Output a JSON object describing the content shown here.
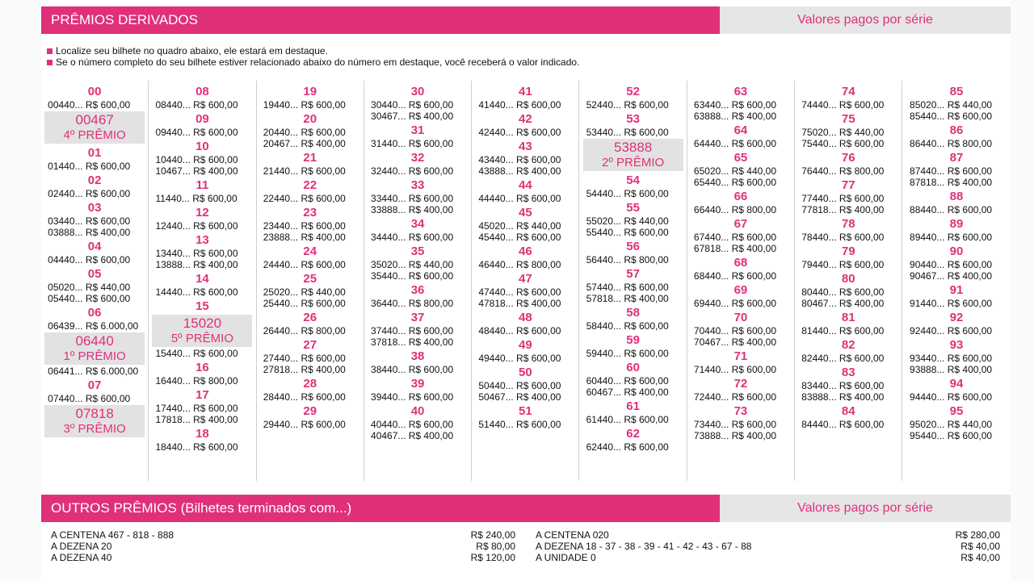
{
  "colors": {
    "accent": "#e0307a",
    "header_gray": "#e6e6e6",
    "highlight": "#e2e2e2"
  },
  "derivados": {
    "title": "PRÊMIOS DERIVADOS",
    "right_label": "Valores pagos por série",
    "notes": [
      "Localize seu bilhete no quadro abaixo, ele estará em destaque.",
      "Se o número completo do seu bilhete estiver relacionado abaixo do número em destaque, você receberá o valor indicado."
    ]
  },
  "columns": [
    [
      {
        "t": "d",
        "v": "00"
      },
      {
        "t": "l",
        "v": "00440... R$ 600,00"
      },
      {
        "t": "h",
        "num": "00467",
        "label": "4º PRÊMIO"
      },
      {
        "t": "d",
        "v": "01"
      },
      {
        "t": "l",
        "v": "01440... R$ 600,00"
      },
      {
        "t": "d",
        "v": "02"
      },
      {
        "t": "l",
        "v": "02440... R$ 600,00"
      },
      {
        "t": "d",
        "v": "03"
      },
      {
        "t": "l",
        "v": "03440... R$ 600,00"
      },
      {
        "t": "l",
        "v": "03888... R$ 400,00"
      },
      {
        "t": "d",
        "v": "04"
      },
      {
        "t": "l",
        "v": "04440... R$ 600,00"
      },
      {
        "t": "d",
        "v": "05"
      },
      {
        "t": "l",
        "v": "05020... R$ 440,00"
      },
      {
        "t": "l",
        "v": "05440... R$ 600,00"
      },
      {
        "t": "d",
        "v": "06"
      },
      {
        "t": "l",
        "v": "06439... R$ 6.000,00"
      },
      {
        "t": "h",
        "num": "06440",
        "label": "1º PRÊMIO"
      },
      {
        "t": "l",
        "v": "06441... R$ 6.000,00"
      },
      {
        "t": "d",
        "v": "07"
      },
      {
        "t": "l",
        "v": "07440... R$ 600,00"
      },
      {
        "t": "h",
        "num": "07818",
        "label": "3º PRÊMIO"
      }
    ],
    [
      {
        "t": "d",
        "v": "08"
      },
      {
        "t": "l",
        "v": "08440... R$ 600,00"
      },
      {
        "t": "d",
        "v": "09"
      },
      {
        "t": "l",
        "v": "09440... R$ 600,00"
      },
      {
        "t": "d",
        "v": "10"
      },
      {
        "t": "l",
        "v": "10440... R$ 600,00"
      },
      {
        "t": "l",
        "v": "10467... R$ 400,00"
      },
      {
        "t": "d",
        "v": "11"
      },
      {
        "t": "l",
        "v": "11440... R$ 600,00"
      },
      {
        "t": "d",
        "v": "12"
      },
      {
        "t": "l",
        "v": "12440... R$ 600,00"
      },
      {
        "t": "d",
        "v": "13"
      },
      {
        "t": "l",
        "v": "13440... R$ 600,00"
      },
      {
        "t": "l",
        "v": "13888... R$ 400,00"
      },
      {
        "t": "d",
        "v": "14"
      },
      {
        "t": "l",
        "v": "14440... R$ 600,00"
      },
      {
        "t": "d",
        "v": "15"
      },
      {
        "t": "h",
        "num": "15020",
        "label": "5º PRÊMIO"
      },
      {
        "t": "l",
        "v": "15440... R$ 600,00"
      },
      {
        "t": "d",
        "v": "16"
      },
      {
        "t": "l",
        "v": "16440... R$ 800,00"
      },
      {
        "t": "d",
        "v": "17"
      },
      {
        "t": "l",
        "v": "17440... R$ 600,00"
      },
      {
        "t": "l",
        "v": "17818... R$ 400,00"
      },
      {
        "t": "d",
        "v": "18"
      },
      {
        "t": "l",
        "v": "18440... R$ 600,00"
      }
    ],
    [
      {
        "t": "d",
        "v": "19"
      },
      {
        "t": "l",
        "v": "19440... R$ 600,00"
      },
      {
        "t": "d",
        "v": "20"
      },
      {
        "t": "l",
        "v": "20440... R$ 600,00"
      },
      {
        "t": "l",
        "v": "20467... R$ 400,00"
      },
      {
        "t": "d",
        "v": "21"
      },
      {
        "t": "l",
        "v": "21440... R$ 600,00"
      },
      {
        "t": "d",
        "v": "22"
      },
      {
        "t": "l",
        "v": "22440... R$ 600,00"
      },
      {
        "t": "d",
        "v": "23"
      },
      {
        "t": "l",
        "v": "23440... R$ 600,00"
      },
      {
        "t": "l",
        "v": "23888... R$ 400,00"
      },
      {
        "t": "d",
        "v": "24"
      },
      {
        "t": "l",
        "v": "24440... R$ 600,00"
      },
      {
        "t": "d",
        "v": "25"
      },
      {
        "t": "l",
        "v": "25020... R$ 440,00"
      },
      {
        "t": "l",
        "v": "25440... R$ 600,00"
      },
      {
        "t": "d",
        "v": "26"
      },
      {
        "t": "l",
        "v": "26440... R$ 800,00"
      },
      {
        "t": "d",
        "v": "27"
      },
      {
        "t": "l",
        "v": "27440... R$ 600,00"
      },
      {
        "t": "l",
        "v": "27818... R$ 400,00"
      },
      {
        "t": "d",
        "v": "28"
      },
      {
        "t": "l",
        "v": "28440... R$ 600,00"
      },
      {
        "t": "d",
        "v": "29"
      },
      {
        "t": "l",
        "v": "29440... R$ 600,00"
      }
    ],
    [
      {
        "t": "d",
        "v": "30"
      },
      {
        "t": "l",
        "v": "30440... R$ 600,00"
      },
      {
        "t": "l",
        "v": "30467... R$ 400,00"
      },
      {
        "t": "d",
        "v": "31"
      },
      {
        "t": "l",
        "v": "31440... R$ 600,00"
      },
      {
        "t": "d",
        "v": "32"
      },
      {
        "t": "l",
        "v": "32440... R$ 600,00"
      },
      {
        "t": "d",
        "v": "33"
      },
      {
        "t": "l",
        "v": "33440... R$ 600,00"
      },
      {
        "t": "l",
        "v": "33888... R$ 400,00"
      },
      {
        "t": "d",
        "v": "34"
      },
      {
        "t": "l",
        "v": "34440... R$ 600,00"
      },
      {
        "t": "d",
        "v": "35"
      },
      {
        "t": "l",
        "v": "35020... R$ 440,00"
      },
      {
        "t": "l",
        "v": "35440... R$ 600,00"
      },
      {
        "t": "d",
        "v": "36"
      },
      {
        "t": "l",
        "v": "36440... R$ 800,00"
      },
      {
        "t": "d",
        "v": "37"
      },
      {
        "t": "l",
        "v": "37440... R$ 600,00"
      },
      {
        "t": "l",
        "v": "37818... R$ 400,00"
      },
      {
        "t": "d",
        "v": "38"
      },
      {
        "t": "l",
        "v": "38440... R$ 600,00"
      },
      {
        "t": "d",
        "v": "39"
      },
      {
        "t": "l",
        "v": "39440... R$ 600,00"
      },
      {
        "t": "d",
        "v": "40"
      },
      {
        "t": "l",
        "v": "40440... R$ 600,00"
      },
      {
        "t": "l",
        "v": "40467... R$ 400,00"
      }
    ],
    [
      {
        "t": "d",
        "v": "41"
      },
      {
        "t": "l",
        "v": "41440... R$ 600,00"
      },
      {
        "t": "d",
        "v": "42"
      },
      {
        "t": "l",
        "v": "42440... R$ 600,00"
      },
      {
        "t": "d",
        "v": "43"
      },
      {
        "t": "l",
        "v": "43440... R$ 600,00"
      },
      {
        "t": "l",
        "v": "43888... R$ 400,00"
      },
      {
        "t": "d",
        "v": "44"
      },
      {
        "t": "l",
        "v": "44440... R$ 600,00"
      },
      {
        "t": "d",
        "v": "45"
      },
      {
        "t": "l",
        "v": "45020... R$ 440,00"
      },
      {
        "t": "l",
        "v": "45440... R$ 600,00"
      },
      {
        "t": "d",
        "v": "46"
      },
      {
        "t": "l",
        "v": "46440... R$ 800,00"
      },
      {
        "t": "d",
        "v": "47"
      },
      {
        "t": "l",
        "v": "47440... R$ 600,00"
      },
      {
        "t": "l",
        "v": "47818... R$ 400,00"
      },
      {
        "t": "d",
        "v": "48"
      },
      {
        "t": "l",
        "v": "48440... R$ 600,00"
      },
      {
        "t": "d",
        "v": "49"
      },
      {
        "t": "l",
        "v": "49440... R$ 600,00"
      },
      {
        "t": "d",
        "v": "50"
      },
      {
        "t": "l",
        "v": "50440... R$ 600,00"
      },
      {
        "t": "l",
        "v": "50467... R$ 400,00"
      },
      {
        "t": "d",
        "v": "51"
      },
      {
        "t": "l",
        "v": "51440... R$ 600,00"
      }
    ],
    [
      {
        "t": "d",
        "v": "52"
      },
      {
        "t": "l",
        "v": "52440... R$ 600,00"
      },
      {
        "t": "d",
        "v": "53"
      },
      {
        "t": "l",
        "v": "53440... R$ 600,00"
      },
      {
        "t": "h",
        "num": "53888",
        "label": "2º PRÊMIO"
      },
      {
        "t": "d",
        "v": "54"
      },
      {
        "t": "l",
        "v": "54440... R$ 600,00"
      },
      {
        "t": "d",
        "v": "55"
      },
      {
        "t": "l",
        "v": "55020... R$ 440,00"
      },
      {
        "t": "l",
        "v": "55440... R$ 600,00"
      },
      {
        "t": "d",
        "v": "56"
      },
      {
        "t": "l",
        "v": "56440... R$ 800,00"
      },
      {
        "t": "d",
        "v": "57"
      },
      {
        "t": "l",
        "v": "57440... R$ 600,00"
      },
      {
        "t": "l",
        "v": "57818... R$ 400,00"
      },
      {
        "t": "d",
        "v": "58"
      },
      {
        "t": "l",
        "v": "58440... R$ 600,00"
      },
      {
        "t": "d",
        "v": "59"
      },
      {
        "t": "l",
        "v": "59440... R$ 600,00"
      },
      {
        "t": "d",
        "v": "60"
      },
      {
        "t": "l",
        "v": "60440... R$ 600,00"
      },
      {
        "t": "l",
        "v": "60467... R$ 400,00"
      },
      {
        "t": "d",
        "v": "61"
      },
      {
        "t": "l",
        "v": "61440... R$ 600,00"
      },
      {
        "t": "d",
        "v": "62"
      },
      {
        "t": "l",
        "v": "62440... R$ 600,00"
      }
    ],
    [
      {
        "t": "d",
        "v": "63"
      },
      {
        "t": "l",
        "v": "63440... R$ 600,00"
      },
      {
        "t": "l",
        "v": "63888... R$ 400,00"
      },
      {
        "t": "d",
        "v": "64"
      },
      {
        "t": "l",
        "v": "64440... R$ 600,00"
      },
      {
        "t": "d",
        "v": "65"
      },
      {
        "t": "l",
        "v": "65020... R$ 440,00"
      },
      {
        "t": "l",
        "v": "65440... R$ 600,00"
      },
      {
        "t": "d",
        "v": "66"
      },
      {
        "t": "l",
        "v": "66440... R$ 800,00"
      },
      {
        "t": "d",
        "v": "67"
      },
      {
        "t": "l",
        "v": "67440... R$ 600,00"
      },
      {
        "t": "l",
        "v": "67818... R$ 400,00"
      },
      {
        "t": "d",
        "v": "68"
      },
      {
        "t": "l",
        "v": "68440... R$ 600,00"
      },
      {
        "t": "d",
        "v": "69"
      },
      {
        "t": "l",
        "v": "69440... R$ 600,00"
      },
      {
        "t": "d",
        "v": "70"
      },
      {
        "t": "l",
        "v": "70440... R$ 600,00"
      },
      {
        "t": "l",
        "v": "70467... R$ 400,00"
      },
      {
        "t": "d",
        "v": "71"
      },
      {
        "t": "l",
        "v": "71440... R$ 600,00"
      },
      {
        "t": "d",
        "v": "72"
      },
      {
        "t": "l",
        "v": "72440... R$ 600,00"
      },
      {
        "t": "d",
        "v": "73"
      },
      {
        "t": "l",
        "v": "73440... R$ 600,00"
      },
      {
        "t": "l",
        "v": "73888... R$ 400,00"
      }
    ],
    [
      {
        "t": "d",
        "v": "74"
      },
      {
        "t": "l",
        "v": "74440... R$ 600,00"
      },
      {
        "t": "d",
        "v": "75"
      },
      {
        "t": "l",
        "v": "75020... R$ 440,00"
      },
      {
        "t": "l",
        "v": "75440... R$ 600,00"
      },
      {
        "t": "d",
        "v": "76"
      },
      {
        "t": "l",
        "v": "76440... R$ 800,00"
      },
      {
        "t": "d",
        "v": "77"
      },
      {
        "t": "l",
        "v": "77440... R$ 600,00"
      },
      {
        "t": "l",
        "v": "77818... R$ 400,00"
      },
      {
        "t": "d",
        "v": "78"
      },
      {
        "t": "l",
        "v": "78440... R$ 600,00"
      },
      {
        "t": "d",
        "v": "79"
      },
      {
        "t": "l",
        "v": "79440... R$ 600,00"
      },
      {
        "t": "d",
        "v": "80"
      },
      {
        "t": "l",
        "v": "80440... R$ 600,00"
      },
      {
        "t": "l",
        "v": "80467... R$ 400,00"
      },
      {
        "t": "d",
        "v": "81"
      },
      {
        "t": "l",
        "v": "81440... R$ 600,00"
      },
      {
        "t": "d",
        "v": "82"
      },
      {
        "t": "l",
        "v": "82440... R$ 600,00"
      },
      {
        "t": "d",
        "v": "83"
      },
      {
        "t": "l",
        "v": "83440... R$ 600,00"
      },
      {
        "t": "l",
        "v": "83888... R$ 400,00"
      },
      {
        "t": "d",
        "v": "84"
      },
      {
        "t": "l",
        "v": "84440... R$ 600,00"
      }
    ],
    [
      {
        "t": "d",
        "v": "85"
      },
      {
        "t": "l",
        "v": "85020... R$ 440,00"
      },
      {
        "t": "l",
        "v": "85440... R$ 600,00"
      },
      {
        "t": "d",
        "v": "86"
      },
      {
        "t": "l",
        "v": "86440... R$ 800,00"
      },
      {
        "t": "d",
        "v": "87"
      },
      {
        "t": "l",
        "v": "87440... R$ 600,00"
      },
      {
        "t": "l",
        "v": "87818... R$ 400,00"
      },
      {
        "t": "d",
        "v": "88"
      },
      {
        "t": "l",
        "v": "88440... R$ 600,00"
      },
      {
        "t": "d",
        "v": "89"
      },
      {
        "t": "l",
        "v": "89440... R$ 600,00"
      },
      {
        "t": "d",
        "v": "90"
      },
      {
        "t": "l",
        "v": "90440... R$ 600,00"
      },
      {
        "t": "l",
        "v": "90467... R$ 400,00"
      },
      {
        "t": "d",
        "v": "91"
      },
      {
        "t": "l",
        "v": "91440... R$ 600,00"
      },
      {
        "t": "d",
        "v": "92"
      },
      {
        "t": "l",
        "v": "92440... R$ 600,00"
      },
      {
        "t": "d",
        "v": "93"
      },
      {
        "t": "l",
        "v": "93440... R$ 600,00"
      },
      {
        "t": "l",
        "v": "93888... R$ 400,00"
      },
      {
        "t": "d",
        "v": "94"
      },
      {
        "t": "l",
        "v": "94440... R$ 600,00"
      },
      {
        "t": "d",
        "v": "95"
      },
      {
        "t": "l",
        "v": "95020... R$ 440,00"
      },
      {
        "t": "l",
        "v": "95440... R$ 600,00"
      }
    ]
  ],
  "outros": {
    "title": "OUTROS PRÊMIOS (Bilhetes terminados com...)",
    "right_label": "Valores pagos por série",
    "left": [
      {
        "label": "A CENTENA 467 - 818 - 888",
        "value": "R$ 240,00"
      },
      {
        "label": "A DEZENA 20",
        "value": "R$ 80,00"
      },
      {
        "label": "A DEZENA 40",
        "value": "R$ 120,00"
      }
    ],
    "right": [
      {
        "label": "A CENTENA 020",
        "value": "R$ 280,00"
      },
      {
        "label": "A DEZENA 18 - 37 - 38 - 39 - 41 - 42 - 43 - 67 - 88",
        "value": "R$ 40,00"
      },
      {
        "label": "A UNIDADE 0",
        "value": "R$ 40,00"
      }
    ]
  }
}
